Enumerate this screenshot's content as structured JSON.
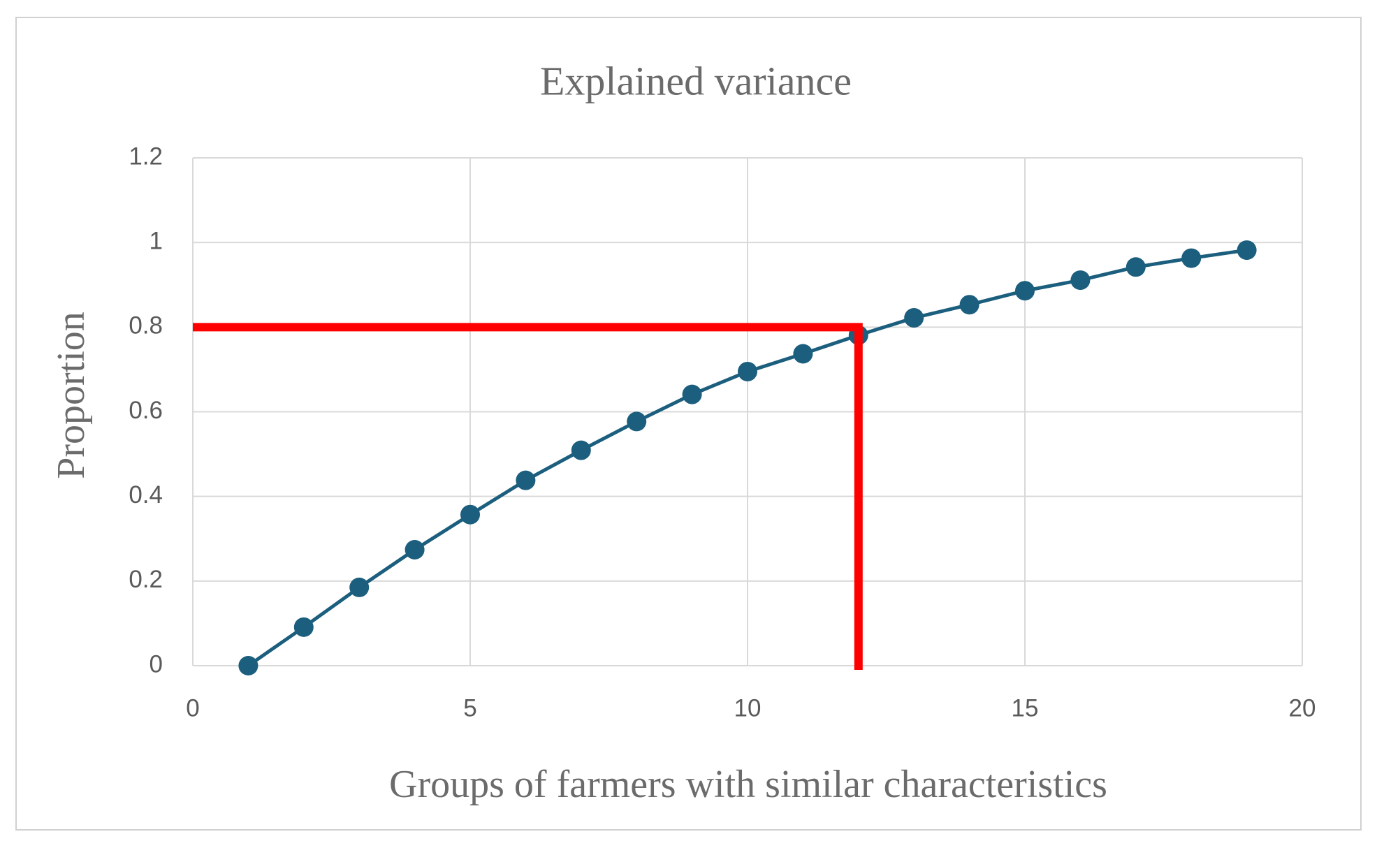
{
  "chart_data": {
    "type": "line",
    "title": "Explained variance",
    "x_label": "Groups of farmers with similar characteristics",
    "y_label": "Proportion",
    "x": [
      1,
      2,
      3,
      4,
      5,
      6,
      7,
      8,
      9,
      10,
      11,
      12,
      13,
      14,
      15,
      16,
      17,
      18,
      19
    ],
    "series": [
      {
        "name": "Explained variance",
        "color": "#1b5e7d",
        "values": [
          0,
          0.091,
          0.185,
          0.274,
          0.357,
          0.438,
          0.509,
          0.577,
          0.641,
          0.695,
          0.737,
          0.781,
          0.822,
          0.853,
          0.886,
          0.911,
          0.942,
          0.963,
          0.982
        ]
      }
    ],
    "xlim": [
      0,
      20
    ],
    "xticks": [
      0,
      5,
      10,
      15,
      20
    ],
    "ylim": [
      0,
      1.2
    ],
    "yticks": [
      0,
      0.2,
      0.4,
      0.6,
      0.8,
      1,
      1.2
    ],
    "grid": true,
    "legend": false,
    "highlight": {
      "x": 12,
      "y": 0.8,
      "color": "#ff0000"
    }
  }
}
